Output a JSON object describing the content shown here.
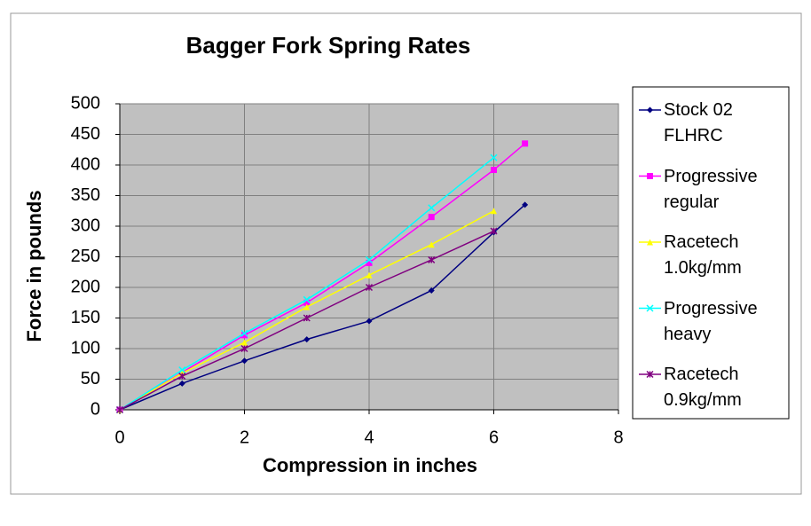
{
  "chart_data": {
    "type": "line",
    "title": "Bagger Fork Spring Rates",
    "x_label": "Compression in inches",
    "y_label": "Force in pounds",
    "xlim": [
      0,
      8
    ],
    "xticks": [
      0,
      2,
      4,
      6,
      8
    ],
    "ylim": [
      0,
      500
    ],
    "yticks": [
      0,
      50,
      100,
      150,
      200,
      250,
      300,
      350,
      400,
      450,
      500
    ],
    "grid": true,
    "legend": "right",
    "series": [
      {
        "name": "Stock 02 FLHRC",
        "color": "#000080",
        "marker": "diamond",
        "x": [
          0,
          1,
          2,
          3,
          4,
          5,
          6,
          6.5
        ],
        "values": [
          0,
          43,
          80,
          115,
          145,
          195,
          290,
          335
        ]
      },
      {
        "name": "Progressive regular",
        "color": "#ff00ff",
        "marker": "square",
        "x": [
          0,
          2,
          3,
          4,
          5,
          6,
          6.5
        ],
        "values": [
          0,
          122,
          175,
          240,
          315,
          392,
          435
        ]
      },
      {
        "name": "Racetech 1.0kg/mm",
        "color": "#ffff00",
        "marker": "triangle",
        "x": [
          0,
          1,
          2,
          3,
          4,
          5,
          6
        ],
        "values": [
          0,
          60,
          110,
          168,
          220,
          270,
          325
        ]
      },
      {
        "name": "Progressive heavy",
        "color": "#00ffff",
        "marker": "cross",
        "x": [
          0,
          1,
          2,
          3,
          4,
          5,
          6
        ],
        "values": [
          0,
          65,
          125,
          180,
          245,
          330,
          412
        ]
      },
      {
        "name": "Racetech 0.9kg/mm",
        "color": "#800080",
        "marker": "star",
        "x": [
          0,
          1,
          2,
          3,
          4,
          5,
          6
        ],
        "values": [
          0,
          55,
          100,
          150,
          200,
          245,
          292
        ]
      }
    ]
  }
}
